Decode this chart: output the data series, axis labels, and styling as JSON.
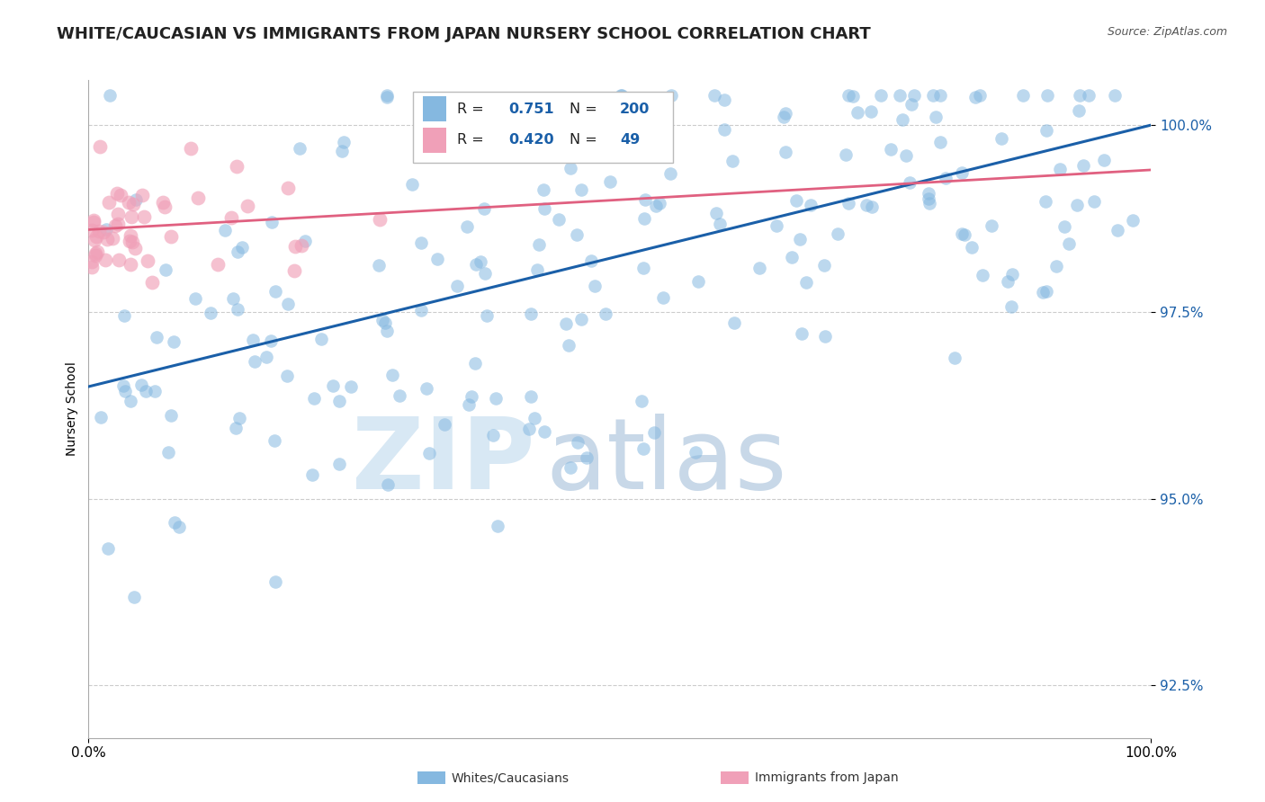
{
  "title": "WHITE/CAUCASIAN VS IMMIGRANTS FROM JAPAN NURSERY SCHOOL CORRELATION CHART",
  "source": "Source: ZipAtlas.com",
  "ylabel": "Nursery School",
  "xmin": 0.0,
  "xmax": 100.0,
  "ymin": 91.8,
  "ymax": 100.6,
  "yticks": [
    92.5,
    95.0,
    97.5,
    100.0
  ],
  "ytick_labels": [
    "92.5%",
    "95.0%",
    "97.5%",
    "100.0%"
  ],
  "xticks": [
    0.0,
    100.0
  ],
  "xtick_labels": [
    "0.0%",
    "100.0%"
  ],
  "blue_R": 0.751,
  "blue_N": 200,
  "pink_R": 0.42,
  "pink_N": 49,
  "blue_color": "#85b8e0",
  "pink_color": "#f0a0b8",
  "blue_line_color": "#1a5fa8",
  "pink_line_color": "#e06080",
  "legend_label_blue": "Whites/Caucasians",
  "legend_label_pink": "Immigrants from Japan",
  "title_fontsize": 13,
  "axis_label_fontsize": 10,
  "tick_fontsize": 11,
  "blue_trend_x": [
    0.0,
    100.0
  ],
  "blue_trend_y": [
    96.5,
    100.0
  ],
  "pink_trend_x": [
    0.0,
    100.0
  ],
  "pink_trend_y": [
    98.6,
    99.4
  ],
  "watermark_zip_color": "#d8e8f4",
  "watermark_atlas_color": "#c8d8e8"
}
